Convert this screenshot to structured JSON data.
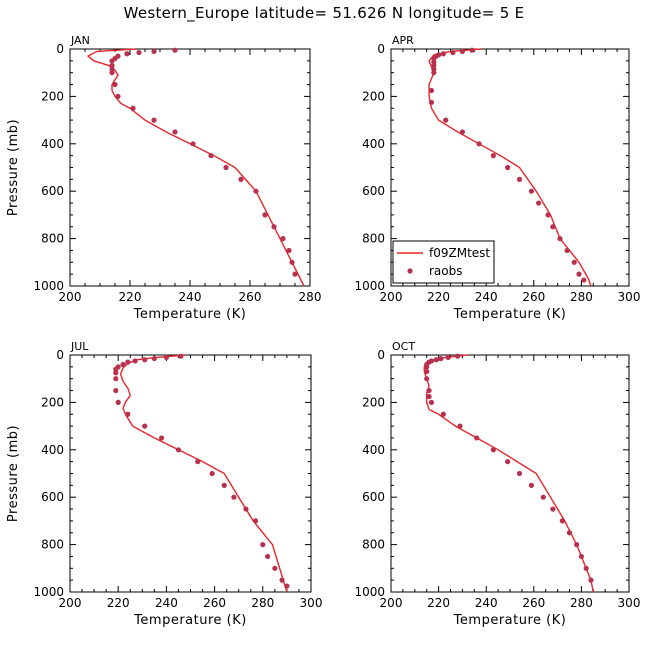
{
  "title": "Western_Europe  latitude= 51.626 N longitude= 5 E",
  "chart_data": [
    {
      "type": "line",
      "panel_label": "JAN",
      "xlabel": "Temperature (K)",
      "ylabel": "Pressure (mb)",
      "xlim": [
        200,
        280
      ],
      "ylim": [
        0,
        1000
      ],
      "y_inverted": true,
      "xticks": [
        200,
        220,
        240,
        260,
        280
      ],
      "yticks": [
        0,
        200,
        400,
        600,
        800,
        1000
      ],
      "series": [
        {
          "type": "line",
          "color": "#e8262b",
          "x": [
            222,
            209,
            206,
            208,
            213,
            215,
            216,
            215,
            214,
            214,
            215,
            217,
            220,
            225,
            232,
            240,
            248,
            255,
            262,
            266,
            270,
            274,
            278
          ],
          "y": [
            0,
            10,
            30,
            50,
            70,
            90,
            110,
            130,
            150,
            175,
            200,
            230,
            250,
            300,
            350,
            400,
            450,
            500,
            600,
            700,
            800,
            900,
            1000
          ]
        },
        {
          "type": "scatter",
          "name": "raobs",
          "color": "#b8324f",
          "x": [
            235,
            228,
            223,
            219,
            216,
            215,
            214,
            214,
            214,
            214,
            215,
            216,
            221,
            228,
            235,
            241,
            247,
            252,
            257,
            262,
            265,
            268,
            271,
            273,
            274,
            275
          ],
          "y": [
            5,
            10,
            15,
            20,
            30,
            40,
            50,
            70,
            85,
            100,
            150,
            200,
            250,
            300,
            350,
            400,
            450,
            500,
            550,
            600,
            700,
            750,
            800,
            850,
            900,
            950
          ]
        }
      ]
    },
    {
      "type": "line",
      "panel_label": "APR",
      "xlabel": "Temperature (K)",
      "ylabel": "",
      "xlim": [
        200,
        300
      ],
      "ylim": [
        0,
        1000
      ],
      "y_inverted": true,
      "xticks": [
        200,
        220,
        240,
        260,
        280,
        300
      ],
      "yticks": [
        0,
        200,
        400,
        600,
        800,
        1000
      ],
      "legend_position": "bottom-left",
      "series": [
        {
          "type": "line",
          "name": "f09ZMtest",
          "color": "#e8262b",
          "x": [
            238,
            225,
            218,
            216,
            217,
            218,
            217,
            216,
            216,
            217,
            220,
            228,
            237,
            246,
            254,
            261,
            267,
            271,
            275,
            279,
            283,
            284
          ],
          "y": [
            0,
            10,
            25,
            50,
            75,
            100,
            125,
            150,
            200,
            250,
            300,
            350,
            400,
            450,
            500,
            600,
            700,
            800,
            850,
            900,
            970,
            1000
          ]
        },
        {
          "type": "scatter",
          "name": "raobs",
          "color": "#b8324f",
          "x": [
            234,
            230,
            226,
            222,
            220,
            219,
            218,
            218,
            218,
            218,
            218,
            217,
            217,
            223,
            230,
            237,
            243,
            249,
            254,
            259,
            262,
            266,
            268,
            271,
            274,
            277,
            279,
            281
          ],
          "y": [
            5,
            10,
            15,
            20,
            25,
            30,
            40,
            55,
            70,
            85,
            100,
            175,
            225,
            300,
            350,
            400,
            450,
            500,
            550,
            600,
            650,
            700,
            750,
            800,
            850,
            900,
            950,
            975
          ]
        }
      ]
    },
    {
      "type": "line",
      "panel_label": "JUL",
      "xlabel": "Temperature (K)",
      "ylabel": "Pressure (mb)",
      "xlim": [
        200,
        300
      ],
      "ylim": [
        0,
        1000
      ],
      "y_inverted": true,
      "xticks": [
        200,
        220,
        240,
        260,
        280,
        300
      ],
      "yticks": [
        0,
        200,
        400,
        600,
        800,
        1000
      ],
      "series": [
        {
          "type": "line",
          "color": "#e8262b",
          "x": [
            248,
            236,
            228,
            224,
            222,
            221,
            222,
            224,
            225,
            223,
            222,
            223,
            226,
            235,
            245,
            255,
            264,
            270,
            276,
            284,
            290
          ],
          "y": [
            0,
            10,
            20,
            35,
            55,
            80,
            110,
            140,
            170,
            200,
            225,
            250,
            300,
            350,
            400,
            450,
            500,
            600,
            700,
            800,
            1000
          ]
        },
        {
          "type": "scatter",
          "name": "raobs",
          "color": "#b8324f",
          "x": [
            246,
            240,
            235,
            231,
            227,
            224,
            222,
            220,
            219,
            219,
            219,
            219,
            220,
            224,
            231,
            238,
            245,
            253,
            259,
            264,
            268,
            273,
            277,
            280,
            282,
            285,
            288,
            290
          ],
          "y": [
            5,
            10,
            15,
            20,
            25,
            30,
            40,
            50,
            60,
            75,
            100,
            150,
            200,
            250,
            300,
            350,
            400,
            450,
            500,
            550,
            600,
            650,
            700,
            800,
            850,
            900,
            950,
            975
          ]
        }
      ]
    },
    {
      "type": "line",
      "panel_label": "OCT",
      "xlabel": "Temperature (K)",
      "ylabel": "",
      "xlim": [
        200,
        300
      ],
      "ylim": [
        0,
        1000
      ],
      "y_inverted": true,
      "xticks": [
        200,
        220,
        240,
        260,
        280,
        300
      ],
      "yticks": [
        0,
        200,
        400,
        600,
        800,
        1000
      ],
      "series": [
        {
          "type": "line",
          "color": "#e8262b",
          "x": [
            232,
            223,
            218,
            215,
            214,
            214,
            215,
            216,
            215,
            215,
            216,
            220,
            227,
            236,
            245,
            253,
            261,
            267,
            273,
            278,
            282,
            284,
            285
          ],
          "y": [
            0,
            10,
            20,
            30,
            50,
            70,
            100,
            130,
            160,
            200,
            230,
            250,
            300,
            350,
            400,
            450,
            500,
            600,
            700,
            800,
            900,
            950,
            1000
          ]
        },
        {
          "type": "scatter",
          "name": "raobs",
          "color": "#b8324f",
          "x": [
            228,
            224,
            221,
            219,
            217,
            216,
            215,
            215,
            215,
            215,
            216,
            216,
            217,
            222,
            229,
            236,
            243,
            249,
            254,
            259,
            264,
            268,
            272,
            275,
            278,
            280,
            282,
            284
          ],
          "y": [
            5,
            10,
            15,
            20,
            25,
            30,
            40,
            50,
            70,
            100,
            150,
            175,
            200,
            250,
            300,
            350,
            400,
            450,
            500,
            550,
            600,
            650,
            700,
            750,
            800,
            850,
            900,
            950
          ]
        }
      ]
    }
  ],
  "legend": {
    "line_label": "f09ZMtest",
    "marker_label": "raobs"
  }
}
